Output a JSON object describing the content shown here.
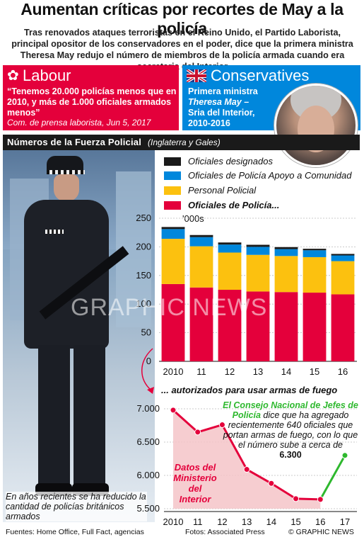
{
  "title": "Aumentan críticas por recortes de May a la policía",
  "subtitle": "Tras renovados ataques terroristas en el Reino Unido, el Partido Laborista, principal opositor de los conservadores en el poder, dice que la primera ministra Theresa May redujo el número de miembros de la policía armada cuando era secretaria del Interior",
  "labour": {
    "name": "Labour",
    "quote": "“Tenemos 20.000 policías menos que en 2010, y más de 1.000 oficiales armados menos”",
    "source": "Com. de prensa laborista, Jun 5, 2017"
  },
  "conservatives": {
    "name": "Conservatives",
    "line1": "Primera ministra",
    "line2": "Theresa May –",
    "line3": "Sria del Interior,",
    "line4": "2010-2016"
  },
  "section": {
    "title": "Números de la Fuerza Policial",
    "subtitle": "(Inglaterra y Gales)"
  },
  "legend": [
    {
      "label": "Oficiales designados",
      "color": "#1a1a1a"
    },
    {
      "label": "Oficiales de Policía Apoyo a Comunidad",
      "color": "#0087dc"
    },
    {
      "label": "Personal Policial",
      "color": "#fcc10f"
    },
    {
      "label": "Oficiales de Policía...",
      "color": "#e4003b"
    }
  ],
  "chart_data": [
    {
      "type": "bar",
      "stacked": true,
      "categories": [
        "2010",
        "11",
        "12",
        "13",
        "14",
        "15",
        "16"
      ],
      "unit": "'000s",
      "ylim": [
        0,
        250
      ],
      "yticks": [
        0,
        50,
        100,
        150,
        200,
        250
      ],
      "series": [
        {
          "name": "Oficiales de Policía...",
          "color": "#e4003b",
          "values": [
            135,
            129,
            125,
            122,
            121,
            120,
            117
          ]
        },
        {
          "name": "Personal Policial",
          "color": "#fcc10f",
          "values": [
            79,
            72,
            65,
            64,
            63,
            62,
            58
          ]
        },
        {
          "name": "Oficiales de Policía Apoyo a Comunidad",
          "color": "#0087dc",
          "values": [
            17,
            16,
            14,
            14,
            12,
            12,
            10
          ]
        },
        {
          "name": "Oficiales designados",
          "color": "#1a1a1a",
          "values": [
            4,
            4,
            4,
            4,
            4,
            3,
            3
          ]
        }
      ]
    },
    {
      "type": "line",
      "title": "... autorizados para usar armas de fuego",
      "x": [
        "2010",
        "11",
        "12",
        "13",
        "14",
        "15",
        "16",
        "17"
      ],
      "values": [
        6980,
        6650,
        6760,
        6090,
        5880,
        5650,
        5640,
        6300
      ],
      "ylim": [
        5500,
        7000
      ],
      "yticks": [
        "5.500",
        "6.000",
        "6.500",
        "7.000"
      ],
      "yticks_values": [
        5500,
        6000,
        6500,
        7000
      ],
      "colors": {
        "official": "#e4003b",
        "projection": "#2eb82e"
      }
    }
  ],
  "annotations": {
    "green_bold": "El Consejo Nacional de Jefes de Policía",
    "green_rest": "dice que ha agregado recientemente 640 oficiales que portan armas de fuego, con lo que el número sube a cerca de",
    "green_value": "6.300",
    "red": "Datos del Ministerio del Interior"
  },
  "photo_caption": "En años recientes se ha reducido la cantidad de policías británicos armados",
  "watermark": "GRAPHIC NEWS",
  "footer": {
    "sources": "Fuentes: Home Office, Full Fact, agencias",
    "photos": "Fotos: Associated Press",
    "brand": "© GRAPHIC NEWS"
  }
}
